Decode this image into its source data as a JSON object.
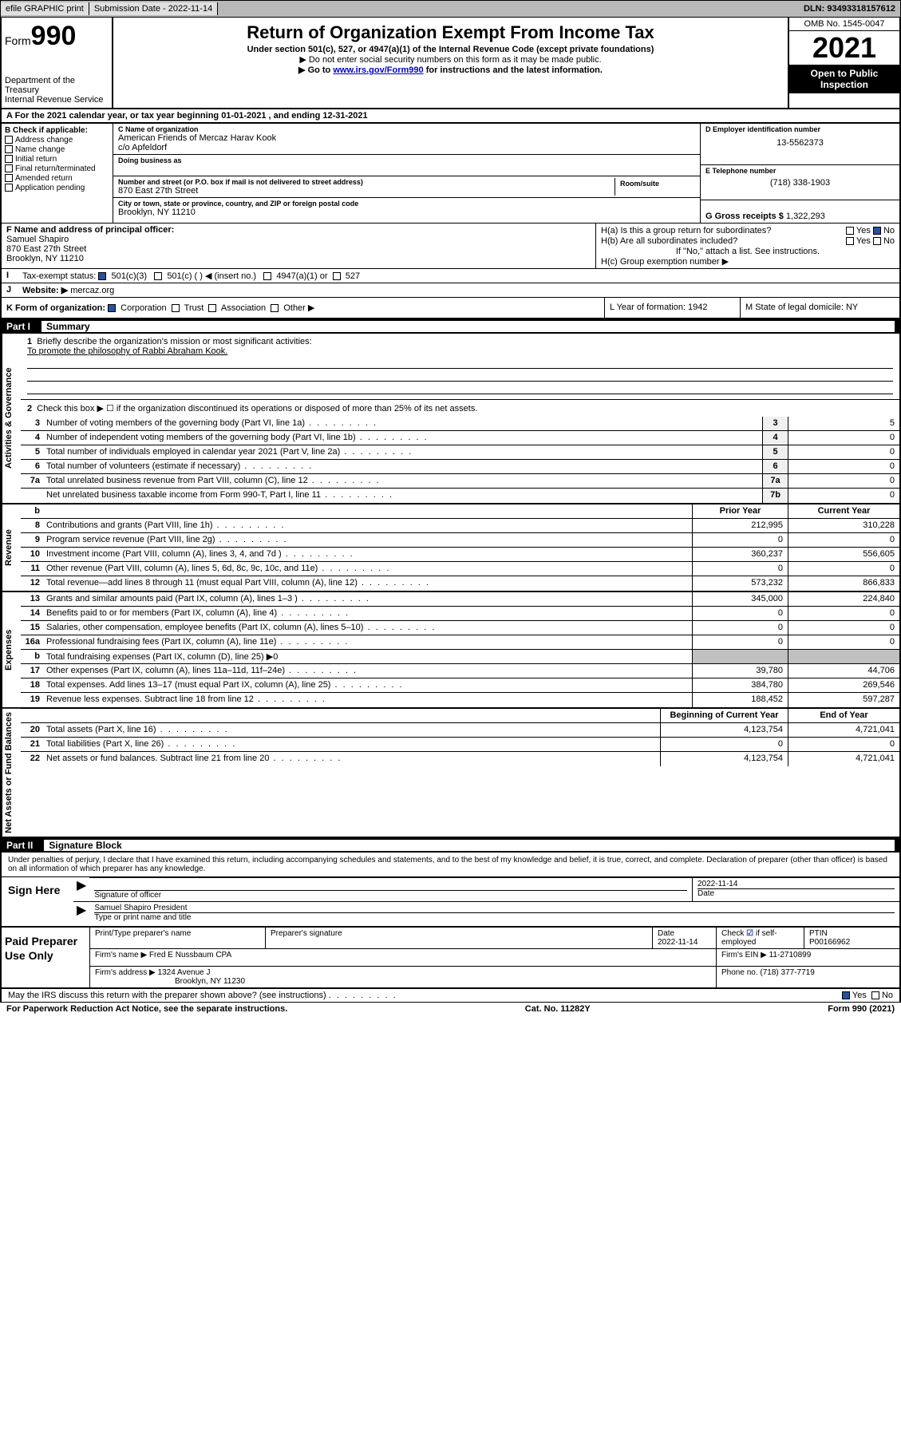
{
  "topbar": {
    "efile": "efile GRAPHIC print",
    "submission": "Submission Date - 2022-11-14",
    "dln": "DLN: 93493318157612"
  },
  "header": {
    "form_label": "Form",
    "form_num": "990",
    "dept": "Department of the Treasury",
    "irs": "Internal Revenue Service",
    "title": "Return of Organization Exempt From Income Tax",
    "sub1": "Under section 501(c), 527, or 4947(a)(1) of the Internal Revenue Code (except private foundations)",
    "sub2": "▶ Do not enter social security numbers on this form as it may be made public.",
    "sub3_pre": "▶ Go to ",
    "sub3_link": "www.irs.gov/Form990",
    "sub3_post": " for instructions and the latest information.",
    "omb": "OMB No. 1545-0047",
    "year": "2021",
    "inspect": "Open to Public Inspection"
  },
  "row_a": "A For the 2021 calendar year, or tax year beginning 01-01-2021   , and ending 12-31-2021",
  "col_b": {
    "label": "B Check if applicable:",
    "items": [
      "Address change",
      "Name change",
      "Initial return",
      "Final return/terminated",
      "Amended return",
      "Application pending"
    ]
  },
  "col_c": {
    "name_label": "C Name of organization",
    "name1": "American Friends of Mercaz Harav Kook",
    "name2": "c/o Apfeldorf",
    "dba_label": "Doing business as",
    "street_label": "Number and street (or P.O. box if mail is not delivered to street address)",
    "room_label": "Room/suite",
    "street": "870 East 27th Street",
    "city_label": "City or town, state or province, country, and ZIP or foreign postal code",
    "city": "Brooklyn, NY  11210"
  },
  "col_d": {
    "ein_label": "D Employer identification number",
    "ein": "13-5562373",
    "phone_label": "E Telephone number",
    "phone": "(718) 338-1903",
    "gross_label": "G Gross receipts $",
    "gross": "1,322,293"
  },
  "col_f": {
    "label": "F  Name and address of principal officer:",
    "name": "Samuel Shapiro",
    "addr1": "870 East 27th Street",
    "addr2": "Brooklyn, NY  11210"
  },
  "col_h": {
    "a_label": "H(a)  Is this a group return for subordinates?",
    "b_label": "H(b)  Are all subordinates included?",
    "b_note": "If \"No,\" attach a list. See instructions.",
    "c_label": "H(c)  Group exemption number ▶"
  },
  "row_i": {
    "label": "Tax-exempt status:",
    "opts": [
      "501(c)(3)",
      "501(c) (  ) ◀ (insert no.)",
      "4947(a)(1) or",
      "527"
    ]
  },
  "row_j": {
    "label": "Website: ▶",
    "val": "mercaz.org"
  },
  "row_k": {
    "label": "K Form of organization:",
    "opts": [
      "Corporation",
      "Trust",
      "Association",
      "Other ▶"
    ],
    "l_label": "L Year of formation: 1942",
    "m_label": "M State of legal domicile: NY"
  },
  "parts": {
    "p1": "Part I",
    "p1_title": "Summary",
    "p2": "Part II",
    "p2_title": "Signature Block"
  },
  "summary": {
    "q1": "Briefly describe the organization's mission or most significant activities:",
    "q1_ans": "To promote the philosophy of Rabbi Abraham Kook.",
    "q2": "Check this box ▶ ☐  if the organization discontinued its operations or disposed of more than 25% of its net assets.",
    "lines_gov": [
      {
        "n": "3",
        "d": "Number of voting members of the governing body (Part VI, line 1a)",
        "b": "3",
        "v": "5"
      },
      {
        "n": "4",
        "d": "Number of independent voting members of the governing body (Part VI, line 1b)",
        "b": "4",
        "v": "0"
      },
      {
        "n": "5",
        "d": "Total number of individuals employed in calendar year 2021 (Part V, line 2a)",
        "b": "5",
        "v": "0"
      },
      {
        "n": "6",
        "d": "Total number of volunteers (estimate if necessary)",
        "b": "6",
        "v": "0"
      },
      {
        "n": "7a",
        "d": "Total unrelated business revenue from Part VIII, column (C), line 12",
        "b": "7a",
        "v": "0"
      },
      {
        "n": "",
        "d": "Net unrelated business taxable income from Form 990-T, Part I, line 11",
        "b": "7b",
        "v": "0"
      }
    ],
    "hdr_prior": "Prior Year",
    "hdr_curr": "Current Year",
    "lines_rev": [
      {
        "n": "8",
        "d": "Contributions and grants (Part VIII, line 1h)",
        "p": "212,995",
        "c": "310,228"
      },
      {
        "n": "9",
        "d": "Program service revenue (Part VIII, line 2g)",
        "p": "0",
        "c": "0"
      },
      {
        "n": "10",
        "d": "Investment income (Part VIII, column (A), lines 3, 4, and 7d )",
        "p": "360,237",
        "c": "556,605"
      },
      {
        "n": "11",
        "d": "Other revenue (Part VIII, column (A), lines 5, 6d, 8c, 9c, 10c, and 11e)",
        "p": "0",
        "c": "0"
      },
      {
        "n": "12",
        "d": "Total revenue—add lines 8 through 11 (must equal Part VIII, column (A), line 12)",
        "p": "573,232",
        "c": "866,833"
      }
    ],
    "lines_exp": [
      {
        "n": "13",
        "d": "Grants and similar amounts paid (Part IX, column (A), lines 1–3 )",
        "p": "345,000",
        "c": "224,840"
      },
      {
        "n": "14",
        "d": "Benefits paid to or for members (Part IX, column (A), line 4)",
        "p": "0",
        "c": "0"
      },
      {
        "n": "15",
        "d": "Salaries, other compensation, employee benefits (Part IX, column (A), lines 5–10)",
        "p": "0",
        "c": "0"
      },
      {
        "n": "16a",
        "d": "Professional fundraising fees (Part IX, column (A), line 11e)",
        "p": "0",
        "c": "0"
      },
      {
        "n": "b",
        "d": "Total fundraising expenses (Part IX, column (D), line 25) ▶0",
        "p": "",
        "c": "",
        "shaded": true
      },
      {
        "n": "17",
        "d": "Other expenses (Part IX, column (A), lines 11a–11d, 11f–24e)",
        "p": "39,780",
        "c": "44,706"
      },
      {
        "n": "18",
        "d": "Total expenses. Add lines 13–17 (must equal Part IX, column (A), line 25)",
        "p": "384,780",
        "c": "269,546"
      },
      {
        "n": "19",
        "d": "Revenue less expenses. Subtract line 18 from line 12",
        "p": "188,452",
        "c": "597,287"
      }
    ],
    "hdr_beg": "Beginning of Current Year",
    "hdr_end": "End of Year",
    "lines_net": [
      {
        "n": "20",
        "d": "Total assets (Part X, line 16)",
        "p": "4,123,754",
        "c": "4,721,041"
      },
      {
        "n": "21",
        "d": "Total liabilities (Part X, line 26)",
        "p": "0",
        "c": "0"
      },
      {
        "n": "22",
        "d": "Net assets or fund balances. Subtract line 21 from line 20",
        "p": "4,123,754",
        "c": "4,721,041"
      }
    ]
  },
  "vtabs": {
    "gov": "Activities & Governance",
    "rev": "Revenue",
    "exp": "Expenses",
    "net": "Net Assets or Fund Balances"
  },
  "sig": {
    "intro": "Under penalties of perjury, I declare that I have examined this return, including accompanying schedules and statements, and to the best of my knowledge and belief, it is true, correct, and complete. Declaration of preparer (other than officer) is based on all information of which preparer has any knowledge.",
    "here": "Sign Here",
    "sig_label": "Signature of officer",
    "date_label": "Date",
    "date": "2022-11-14",
    "name": "Samuel Shapiro  President",
    "name_label": "Type or print name and title"
  },
  "prep": {
    "title": "Paid Preparer Use Only",
    "h1": "Print/Type preparer's name",
    "h2": "Preparer's signature",
    "h3": "Date",
    "h3v": "2022-11-14",
    "h4": "Check ☑ if self-employed",
    "h5": "PTIN",
    "h5v": "P00166962",
    "firm_label": "Firm's name    ▶",
    "firm": "Fred E Nussbaum CPA",
    "ein_label": "Firm's EIN ▶",
    "ein": "11-2710899",
    "addr_label": "Firm's address ▶",
    "addr1": "1324 Avenue J",
    "addr2": "Brooklyn, NY  11230",
    "phone_label": "Phone no.",
    "phone": "(718) 377-7719"
  },
  "discuss": "May the IRS discuss this return with the preparer shown above? (see instructions)",
  "footer": {
    "left": "For Paperwork Reduction Act Notice, see the separate instructions.",
    "mid": "Cat. No. 11282Y",
    "right": "Form 990 (2021)"
  }
}
